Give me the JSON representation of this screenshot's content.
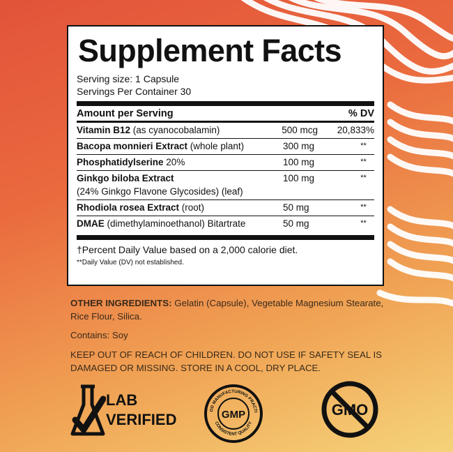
{
  "title": "Supplement Facts",
  "serving_size": "Serving size: 1 Capsule",
  "servings_per_container": "Servings Per Container 30",
  "header": {
    "amount": "Amount per Serving",
    "dv": "% DV"
  },
  "rows": [
    {
      "bold": "Vitamin B12",
      "rest": " (as  cyanocobalamin)",
      "amount": "500 mcg",
      "dv": "20,833%"
    },
    {
      "bold": "Bacopa monnieri Extract",
      "rest": " (whole plant)",
      "amount": "300 mg",
      "dv": "**"
    },
    {
      "bold": "Phosphatidylserine",
      "rest": " 20%",
      "amount": "100 mg",
      "dv": "**"
    },
    {
      "bold": "Ginkgo biloba Extract",
      "rest": "",
      "line2": "(24% Ginkgo Flavone Glycosides) (leaf)",
      "amount": "100 mg",
      "dv": "**"
    },
    {
      "bold": "Rhodiola rosea Extract",
      "rest": " (root)",
      "amount": "50 mg",
      "dv": "**"
    },
    {
      "bold": "DMAE",
      "rest": " (dimethylaminoethanol) Bitartrate",
      "amount": "50 mg",
      "dv": "**"
    }
  ],
  "footnote_dv": "†Percent Daily Value based on a 2,000 calorie diet.",
  "footnote_est": "**Daily Value (DV) not established.",
  "other_ingredients_label": "OTHER INGREDIENTS:",
  "other_ingredients_text": " Gelatin (Capsule), Vegetable Magnesium Stearate, Rice Flour, Silica.",
  "contains": "Contains: Soy",
  "warning": "KEEP OUT OF REACH OF CHILDREN. DO NOT USE IF SAFETY SEAL IS DAMAGED OR MISSING. STORE IN A COOL, DRY PLACE.",
  "badges": {
    "lab_line1": "LAB",
    "lab_line2": "VERIFIED",
    "gmp_center": "GMP",
    "gmp_ring_top": "GOOD MANUFACTURING PRACTICE",
    "gmp_ring_bottom": "CONSISTENT QUALITY",
    "gmo": "GMO"
  },
  "colors": {
    "bg_top": "#e2533a",
    "bg_bottom": "#f5d37a",
    "ink": "#111111"
  }
}
